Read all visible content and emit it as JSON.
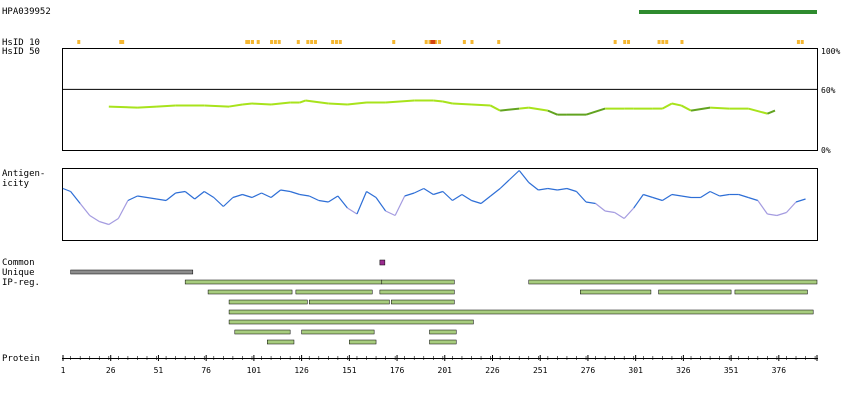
{
  "header": {
    "antibody_id": "HPA039952",
    "epitope_bar_color": "#2e8b2e"
  },
  "hsid": {
    "label_10": "HsID 10",
    "label_50": "HsID 50",
    "marker_color": "#f5b731",
    "hot_color": "#d4420f",
    "hotspot_positions": [
      9,
      31,
      32,
      97,
      98,
      100,
      103,
      110,
      112,
      114,
      124,
      129,
      131,
      133,
      142,
      144,
      146,
      174,
      191,
      193,
      195,
      196,
      198,
      211,
      215,
      229,
      290,
      295,
      297,
      313,
      315,
      317,
      325,
      386,
      388
    ],
    "hot_positions": [
      194,
      195
    ]
  },
  "identity_panel": {
    "pct_top": "100%",
    "pct_mid": "60%",
    "pct_bottom": "0%",
    "threshold_pct": 60,
    "light_color": "#a8e31c",
    "dark_color": "#62a320"
  },
  "antigenicity": {
    "label": "Antigen-\nicity",
    "high_color": "#2d6ed6",
    "low_color": "#a49be0"
  },
  "tracks": {
    "common_label": "Common",
    "unique_label": "Unique",
    "ipreg_label": "IP-reg.",
    "common_color": "#9b2b8f",
    "unique_color": "#8c8c8c",
    "ipreg_color": "#a7cc7e"
  },
  "protein": {
    "label": "Protein",
    "length": 396,
    "ticks": [
      "1",
      "26",
      "51",
      "76",
      "101",
      "126",
      "151",
      "176",
      "201",
      "226",
      "251",
      "276",
      "301",
      "326",
      "351",
      "376"
    ]
  },
  "chart_data": {
    "type": "line",
    "title": "",
    "epitope_range": [
      303,
      396
    ],
    "common_range": [
      167,
      169
    ],
    "unique_range": [
      5,
      69
    ],
    "ipreg_segments": [
      [
        65,
        168
      ],
      [
        168,
        206
      ],
      [
        245,
        396
      ],
      [
        77,
        121
      ],
      [
        123,
        163
      ],
      [
        167,
        206
      ],
      [
        272,
        309
      ],
      [
        313,
        351
      ],
      [
        353,
        391
      ],
      [
        88,
        129
      ],
      [
        130,
        172
      ],
      [
        173,
        206
      ],
      [
        88,
        394
      ],
      [
        88,
        216
      ],
      [
        91,
        120
      ],
      [
        126,
        164
      ],
      [
        193,
        207
      ],
      [
        108,
        122
      ],
      [
        151,
        165
      ],
      [
        193,
        207
      ]
    ],
    "series": [
      {
        "x": [
          25,
          40,
          50,
          60,
          75,
          88,
          95,
          100,
          110,
          120,
          125,
          128,
          140,
          150,
          160,
          170,
          185,
          195,
          200,
          205,
          215,
          225,
          230,
          240,
          245,
          255,
          260,
          265,
          275,
          285,
          295,
          300,
          310,
          315,
          320,
          325,
          330,
          340,
          350,
          360,
          370,
          374
        ],
        "y": [
          43,
          42,
          43,
          44,
          44,
          43,
          45,
          46,
          45,
          47,
          47,
          49,
          46,
          45,
          47,
          47,
          49,
          49,
          48,
          46,
          45,
          44,
          39,
          41,
          42,
          39,
          35,
          35,
          35,
          41,
          41,
          41,
          41,
          41,
          46,
          44,
          39,
          42,
          41,
          41,
          36,
          39
        ]
      },
      {
        "x": [
          1,
          5,
          10,
          15,
          20,
          25,
          30,
          35,
          40,
          45,
          50,
          55,
          60,
          65,
          70,
          75,
          80,
          85,
          90,
          95,
          100,
          105,
          110,
          115,
          120,
          125,
          130,
          135,
          140,
          145,
          150,
          155,
          160,
          165,
          170,
          175,
          180,
          185,
          190,
          195,
          200,
          205,
          210,
          215,
          220,
          225,
          230,
          235,
          240,
          245,
          250,
          255,
          260,
          265,
          270,
          275,
          280,
          285,
          290,
          295,
          300,
          305,
          310,
          315,
          320,
          325,
          330,
          335,
          340,
          345,
          350,
          355,
          360,
          365,
          370,
          375,
          380,
          385,
          390
        ],
        "y": [
          0.55,
          0.45,
          0.05,
          -0.35,
          -0.55,
          -0.65,
          -0.45,
          0.15,
          0.3,
          0.25,
          0.2,
          0.15,
          0.4,
          0.45,
          0.2,
          0.45,
          0.25,
          -0.05,
          0.25,
          0.35,
          0.25,
          0.4,
          0.25,
          0.5,
          0.45,
          0.35,
          0.3,
          0.15,
          0.1,
          0.3,
          -0.1,
          -0.3,
          0.45,
          0.25,
          -0.2,
          -0.35,
          0.3,
          0.4,
          0.55,
          0.35,
          0.45,
          0.15,
          0.35,
          0.15,
          0.05,
          0.3,
          0.55,
          0.85,
          1.15,
          0.75,
          0.5,
          0.55,
          0.5,
          0.55,
          0.45,
          0.1,
          0.05,
          -0.2,
          -0.25,
          -0.45,
          -0.1,
          0.35,
          0.25,
          0.15,
          0.35,
          0.3,
          0.25,
          0.25,
          0.45,
          0.3,
          0.35,
          0.35,
          0.25,
          0.15,
          -0.3,
          -0.35,
          -0.25,
          0.1,
          0.2
        ]
      }
    ],
    "xlim": [
      1,
      396
    ],
    "ylim": [
      0,
      100
    ]
  }
}
